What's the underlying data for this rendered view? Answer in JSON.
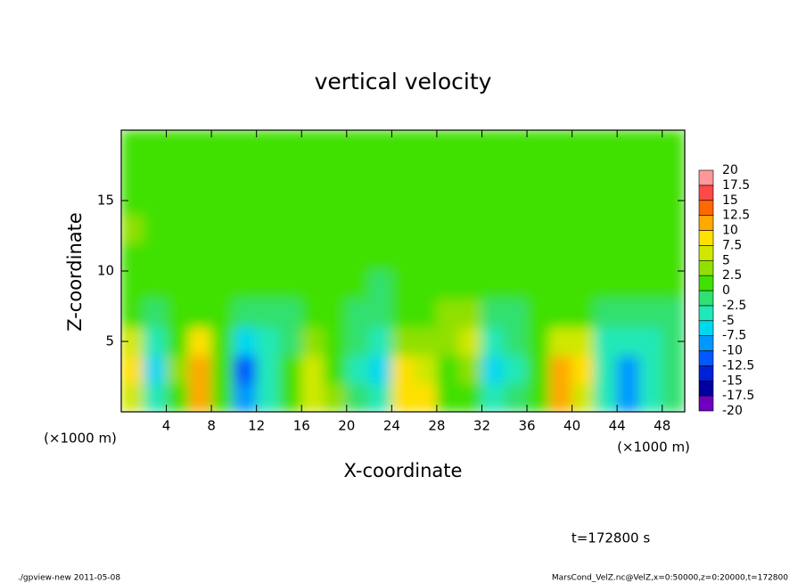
{
  "chart_data": {
    "type": "heatmap",
    "title": "vertical velocity",
    "xlabel": "X-coordinate",
    "ylabel": "Z-coordinate",
    "axis_unit": "(×1000 m)",
    "annotation": "t=172800 s",
    "footer_left": "./gpview-new  2011-05-08",
    "footer_right": "MarsCond_VelZ.nc@VelZ,x=0:50000,z=0:20000,t=172800",
    "xlim": [
      0,
      50
    ],
    "ylim": [
      0,
      20
    ],
    "xticks": [
      4,
      8,
      12,
      16,
      20,
      24,
      28,
      32,
      36,
      40,
      44,
      48
    ],
    "yticks": [
      5,
      10,
      15
    ],
    "x": [
      1,
      3,
      5,
      7,
      9,
      11,
      13,
      15,
      17,
      19,
      21,
      23,
      25,
      27,
      29,
      31,
      33,
      35,
      37,
      39,
      41,
      43,
      45,
      47,
      49
    ],
    "z": [
      1,
      3,
      5,
      7,
      9,
      11,
      13,
      15,
      17,
      19
    ],
    "values": [
      [
        7,
        -3,
        2,
        12,
        1,
        -10,
        -3,
        1,
        5,
        3,
        -2,
        -4,
        8,
        9,
        1,
        2,
        -5,
        -2,
        1,
        11,
        6,
        -3,
        -9,
        -4,
        -2
      ],
      [
        8,
        -6,
        3,
        12,
        2,
        -11,
        -3,
        1,
        5,
        2,
        -3,
        -6,
        9,
        7,
        1,
        4,
        -6,
        -3,
        2,
        12,
        8,
        -4,
        -8,
        -4,
        -2
      ],
      [
        5,
        -4,
        2,
        8,
        1,
        -6,
        -4,
        -1,
        3,
        1,
        -2,
        -4,
        3,
        3,
        4,
        7,
        -3,
        -2,
        1,
        7,
        5,
        -3,
        -5,
        -3,
        -2
      ],
      [
        2,
        -2,
        0,
        2,
        0,
        -2,
        -2,
        -1,
        1,
        0,
        -2,
        -2,
        1,
        1,
        3,
        3,
        -1,
        -1,
        0,
        2,
        1,
        -1,
        -2,
        -2,
        -1
      ],
      [
        1,
        0,
        1,
        1,
        1,
        0,
        1,
        1,
        1,
        1,
        0,
        -1,
        1,
        1,
        2,
        2,
        1,
        1,
        1,
        1,
        1,
        1,
        0,
        1,
        0
      ],
      [
        2,
        1,
        1,
        1,
        1,
        1,
        1,
        1,
        1,
        1,
        1,
        1,
        1,
        1,
        1,
        1,
        1,
        1,
        1,
        1,
        1,
        1,
        1,
        1,
        1
      ],
      [
        3,
        2,
        1,
        1,
        1,
        1,
        1,
        1,
        1,
        1,
        1,
        1,
        1,
        1,
        1,
        1,
        1,
        1,
        1,
        1,
        1,
        1,
        1,
        1,
        1
      ],
      [
        1,
        1,
        1,
        1,
        1,
        1,
        1,
        1,
        1,
        1,
        1,
        1,
        1,
        1,
        1,
        1,
        1,
        1,
        1,
        1,
        1,
        1,
        1,
        1,
        1
      ],
      [
        1,
        1,
        1,
        1,
        1,
        1,
        1,
        1,
        1,
        1,
        1,
        1,
        1,
        1,
        1,
        1,
        1,
        1,
        1,
        1,
        1,
        1,
        1,
        1,
        1
      ],
      [
        1,
        1,
        1,
        1,
        1,
        1,
        1,
        1,
        1,
        1,
        1,
        1,
        1,
        1,
        1,
        1,
        1,
        1,
        1,
        1,
        1,
        1,
        1,
        1,
        1
      ]
    ],
    "levels": [
      -20,
      -17.5,
      -15,
      -12.5,
      -10,
      -7.5,
      -5,
      -2.5,
      0,
      2.5,
      5,
      7.5,
      10,
      12.5,
      15,
      17.5,
      20
    ],
    "colors": [
      "#7000c0",
      "#0000a0",
      "#0020d8",
      "#0058ff",
      "#0098ff",
      "#00d8f0",
      "#20e8b8",
      "#30e070",
      "#40e000",
      "#90e000",
      "#d0e800",
      "#ffe000",
      "#ffa800",
      "#ff6800",
      "#ff4848",
      "#ff9898"
    ]
  }
}
